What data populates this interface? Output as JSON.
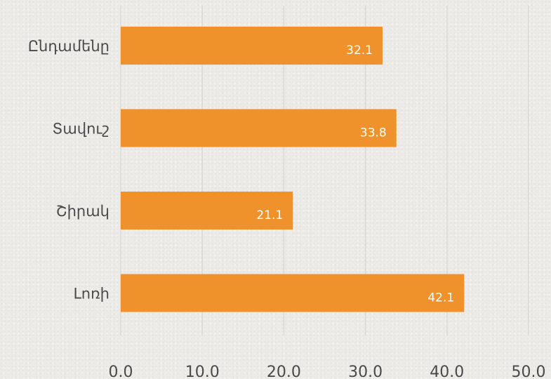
{
  "chart_data": {
    "type": "bar",
    "orientation": "horizontal",
    "categories": [
      "Ընդամենը",
      "Տավուշ",
      "Շիրակ",
      "Լոռի"
    ],
    "values": [
      32.1,
      33.8,
      21.1,
      42.1
    ],
    "data_labels": [
      "32.1",
      "33.8",
      "21.1",
      "42.1"
    ],
    "x_ticks": [
      "0.0",
      "10.0",
      "20.0",
      "30.0",
      "40.0",
      "50.0"
    ],
    "xlim": [
      0,
      50
    ],
    "grid": "vertical",
    "legend": "none",
    "bar_color": "#f0922b",
    "grid_color": "#d9d8d4",
    "label_color": "#4a4a4a",
    "data_label_color": "#ffffff"
  }
}
